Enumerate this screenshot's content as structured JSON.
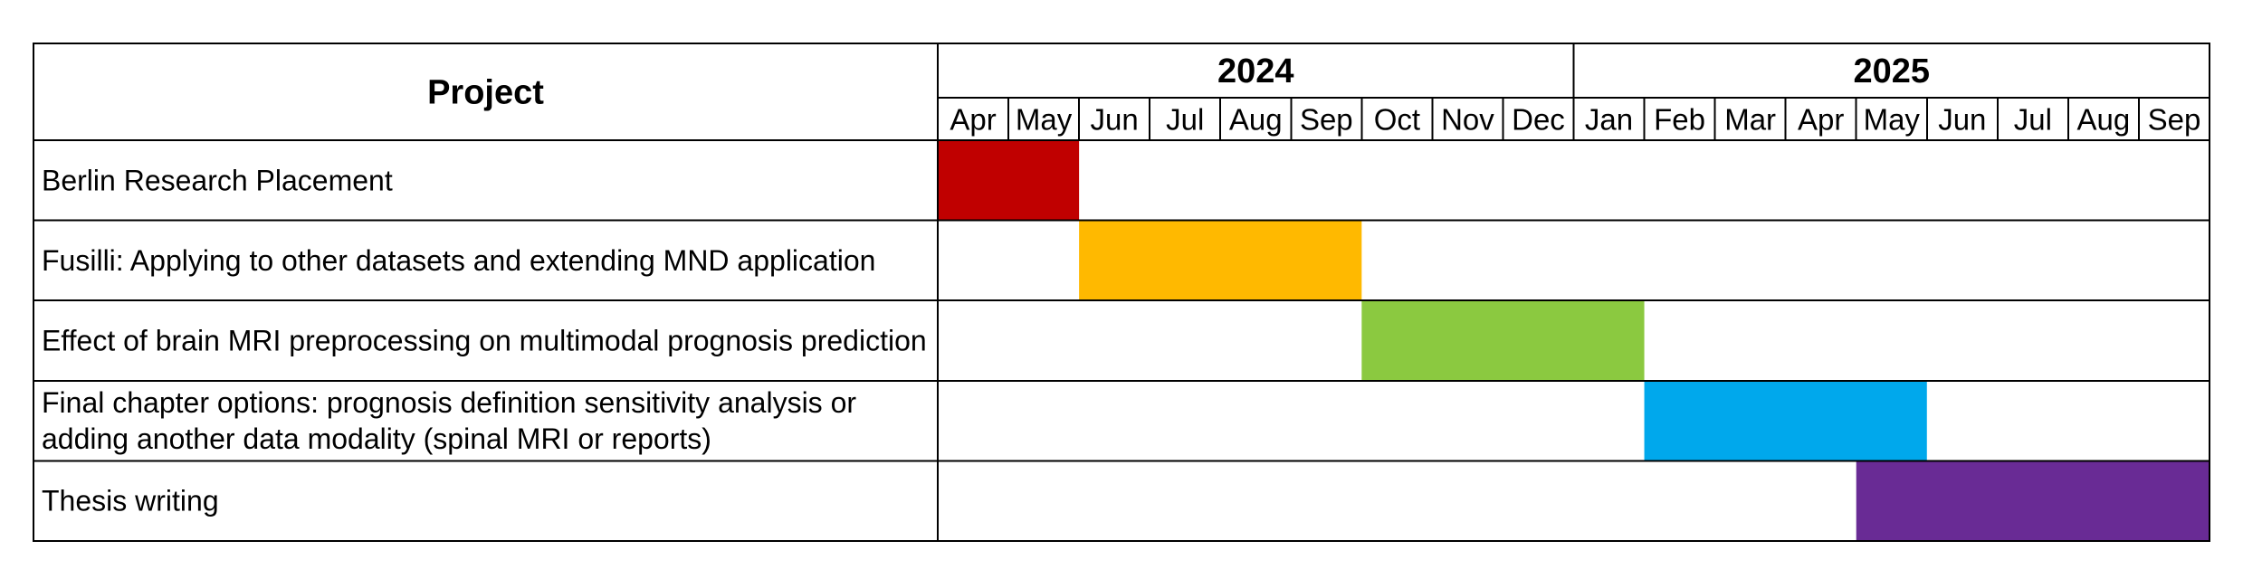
{
  "chart_data": {
    "type": "gantt",
    "header": {
      "project_label": "Project",
      "years": [
        {
          "label": "2024",
          "months": 9
        },
        {
          "label": "2025",
          "months": 9
        }
      ],
      "months": [
        "Apr",
        "May",
        "Jun",
        "Jul",
        "Aug",
        "Sep",
        "Oct",
        "Nov",
        "Dec",
        "Jan",
        "Feb",
        "Mar",
        "Apr",
        "May",
        "Jun",
        "Jul",
        "Aug",
        "Sep"
      ]
    },
    "tasks": [
      {
        "name": "Berlin Research Placement",
        "lines": [
          "Berlin Research Placement"
        ],
        "start": 0,
        "end": 2,
        "color": "#C00000"
      },
      {
        "name": "Fusilli: Applying to other datasets and extending MND application",
        "lines": [
          "Fusilli: Applying to other datasets and extending MND application"
        ],
        "start": 2,
        "end": 6,
        "color": "#FFB900"
      },
      {
        "name": "Effect of brain MRI preprocessing on multimodal prognosis prediction",
        "lines": [
          "Effect of brain MRI preprocessing on multimodal prognosis prediction"
        ],
        "start": 6,
        "end": 10,
        "color": "#8BC940"
      },
      {
        "name": "Final chapter options: prognosis definition sensitivity analysis or adding another data modality (spinal MRI or reports)",
        "lines": [
          "Final chapter options: prognosis definition sensitivity analysis or",
          "adding another data modality (spinal MRI or reports)"
        ],
        "start": 10,
        "end": 14,
        "color": "#00A8EC"
      },
      {
        "name": "Thesis writing",
        "lines": [
          "Thesis writing"
        ],
        "start": 13,
        "end": 18,
        "color": "#692B95"
      }
    ]
  }
}
